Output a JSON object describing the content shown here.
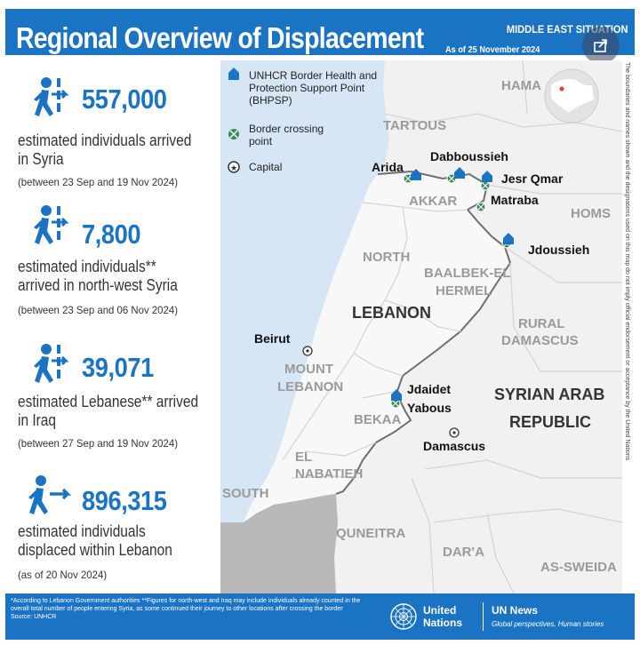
{
  "header": {
    "title": "Regional Overview of Displacement",
    "situation": "MIDDLE EAST SITUATION",
    "date": "As of 25 November 2024"
  },
  "share": {
    "icon": "share-icon"
  },
  "stats": [
    {
      "icon": "person-arrow-border-icon",
      "number": "557,000",
      "desc_lines": [
        "estimated individuals arrived",
        "in Syria"
      ],
      "period": "(between 23 Sep and 19 Nov 2024)"
    },
    {
      "icon": "person-arrow-border-icon",
      "number": "7,800",
      "desc_lines": [
        "estimated individuals**",
        "arrived in north-west Syria"
      ],
      "period": "(between 23 Sep and 06 Nov 2024)"
    },
    {
      "icon": "person-arrow-border-icon",
      "number": "39,071",
      "desc_lines": [
        "estimated Lebanese** arrived",
        "in Iraq"
      ],
      "period": "(between 27 Sep and 19 Nov 2024)"
    },
    {
      "icon": "person-arrow-icon",
      "number": "896,315",
      "desc_lines": [
        "estimated individuals",
        "displaced within Lebanon"
      ],
      "period": "(as of 20 Nov 2024)"
    }
  ],
  "legend": {
    "bhpsp": "UNHCR Border Health and Protection Support Point (BHPSP)",
    "bhpsp_lines": [
      "UNHCR Border Health and",
      "Protection Support Point",
      "(BHPSP)"
    ],
    "crossing_lines": [
      "Border crossing",
      "point"
    ],
    "capital": "Capital"
  },
  "map": {
    "regions": [
      {
        "name": "HAMA"
      },
      {
        "name": "TARTOUS"
      },
      {
        "name": "AKKAR"
      },
      {
        "name": "HOMS"
      },
      {
        "name": "NORTH"
      },
      {
        "name": "BAALBEK-EL"
      },
      {
        "name": "HERMEL"
      },
      {
        "name": "RURAL"
      },
      {
        "name": "DAMASCUS"
      },
      {
        "name": "MOUNT"
      },
      {
        "name": "LEBANON"
      },
      {
        "name": "BEKAA"
      },
      {
        "name": "EL"
      },
      {
        "name": "NABATIEH"
      },
      {
        "name": "SOUTH"
      },
      {
        "name": "QUNEITRA"
      },
      {
        "name": "DAR'A"
      },
      {
        "name": "AS-SWEIDA"
      }
    ],
    "countries": [
      {
        "name": "LEBANON"
      },
      {
        "name": "SYRIAN ARAB"
      },
      {
        "name": "REPUBLIC"
      }
    ],
    "places": [
      {
        "name": "Arida"
      },
      {
        "name": "Dabboussieh"
      },
      {
        "name": "Jesr Qmar"
      },
      {
        "name": "Matraba"
      },
      {
        "name": "Jdoussieh"
      },
      {
        "name": "Jdaidet"
      },
      {
        "name": "Yabous"
      },
      {
        "name": "Beirut"
      },
      {
        "name": "Damascus"
      }
    ],
    "colors": {
      "sea": "#d6e6f5",
      "land": "#f1f1f1",
      "lebanon": "#f7f7f7",
      "border": "#6f6f6f",
      "accent": "#1b73c3",
      "crossing": "#3a8a5a"
    }
  },
  "side_note": "The boundaries and names shown and the designations used on this map do not imply official endorsement or acceptance by the United Nations",
  "footer": {
    "footnote": "*According to Lebanon Government authorities **Figures for north-west and Iraq may include individuals already counted in the overall total number of people entering Syria, as some continued their journey to other locations after crossing the border",
    "source": "Source: UNHCR",
    "un_line1": "United",
    "un_line2": "Nations",
    "news": "UN News",
    "tagline": "Global perspectives, Human stories"
  }
}
